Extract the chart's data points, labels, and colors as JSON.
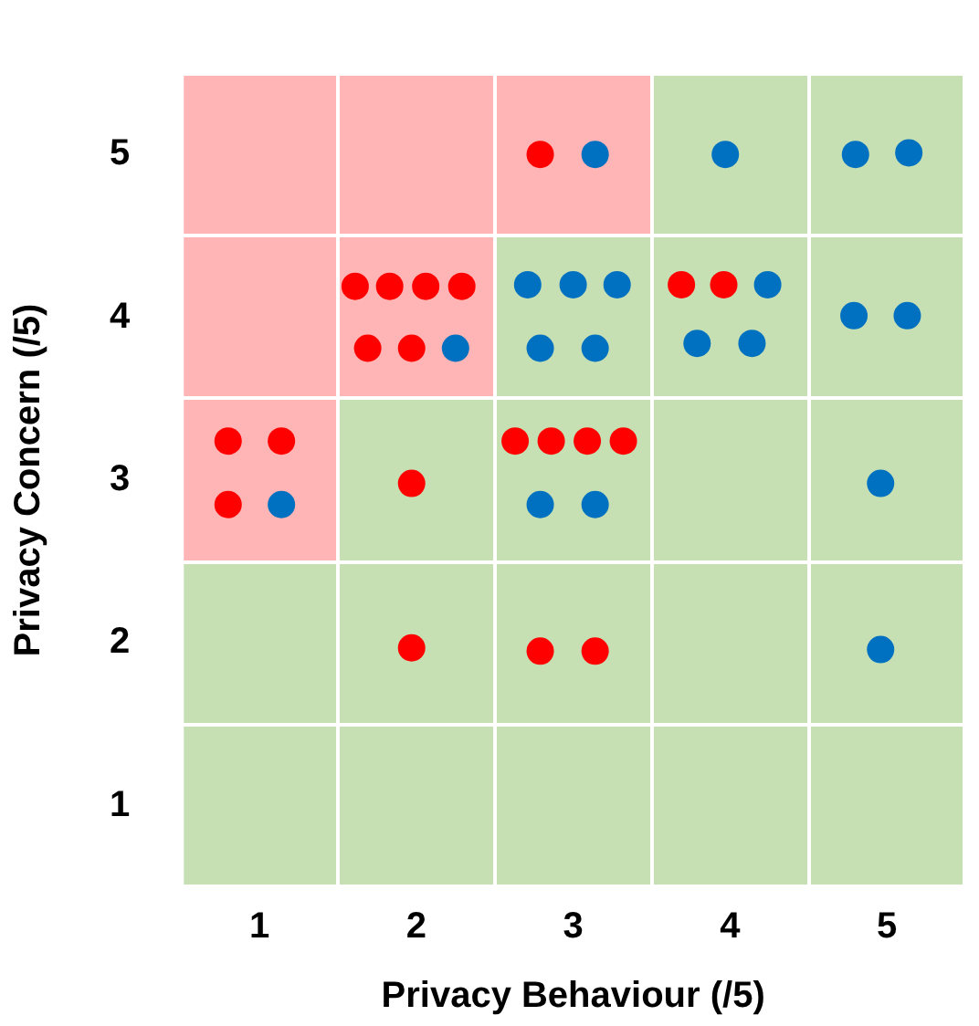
{
  "chart_data": {
    "type": "scatter",
    "xlabel": "Privacy Behaviour (/5)",
    "ylabel": "Privacy Concern (/5)",
    "xlim": [
      0.5,
      5.5
    ],
    "ylim": [
      0.5,
      5.5
    ],
    "xticks": [
      1,
      2,
      3,
      4,
      5
    ],
    "yticks": [
      1,
      2,
      3,
      4,
      5
    ],
    "marker": "circle",
    "series": [
      {
        "color": "#ff0000",
        "x": [
          2.79,
          1.61,
          1.83,
          2.06,
          2.29,
          1.69,
          1.97,
          3.69,
          3.96,
          0.8,
          1.14,
          0.8,
          1.97,
          2.63,
          2.86,
          3.09,
          3.32,
          1.97,
          2.79,
          3.14
        ],
        "values": [
          5.0,
          4.19,
          4.19,
          4.19,
          4.19,
          3.81,
          3.81,
          4.2,
          4.2,
          3.24,
          3.24,
          2.85,
          2.98,
          3.24,
          3.24,
          3.24,
          3.24,
          1.97,
          1.95,
          1.95
        ]
      },
      {
        "color": "#0070c0",
        "x": [
          3.14,
          3.97,
          4.8,
          5.14,
          2.25,
          2.71,
          3.0,
          3.28,
          2.79,
          3.14,
          4.24,
          3.79,
          4.14,
          4.79,
          5.13,
          1.14,
          2.79,
          3.14,
          4.96,
          4.96
        ],
        "values": [
          5.0,
          5.0,
          5.0,
          5.01,
          3.81,
          4.2,
          4.2,
          4.2,
          3.81,
          3.81,
          4.2,
          3.84,
          3.84,
          4.01,
          4.01,
          2.85,
          2.85,
          2.85,
          2.98,
          1.96
        ]
      }
    ]
  }
}
